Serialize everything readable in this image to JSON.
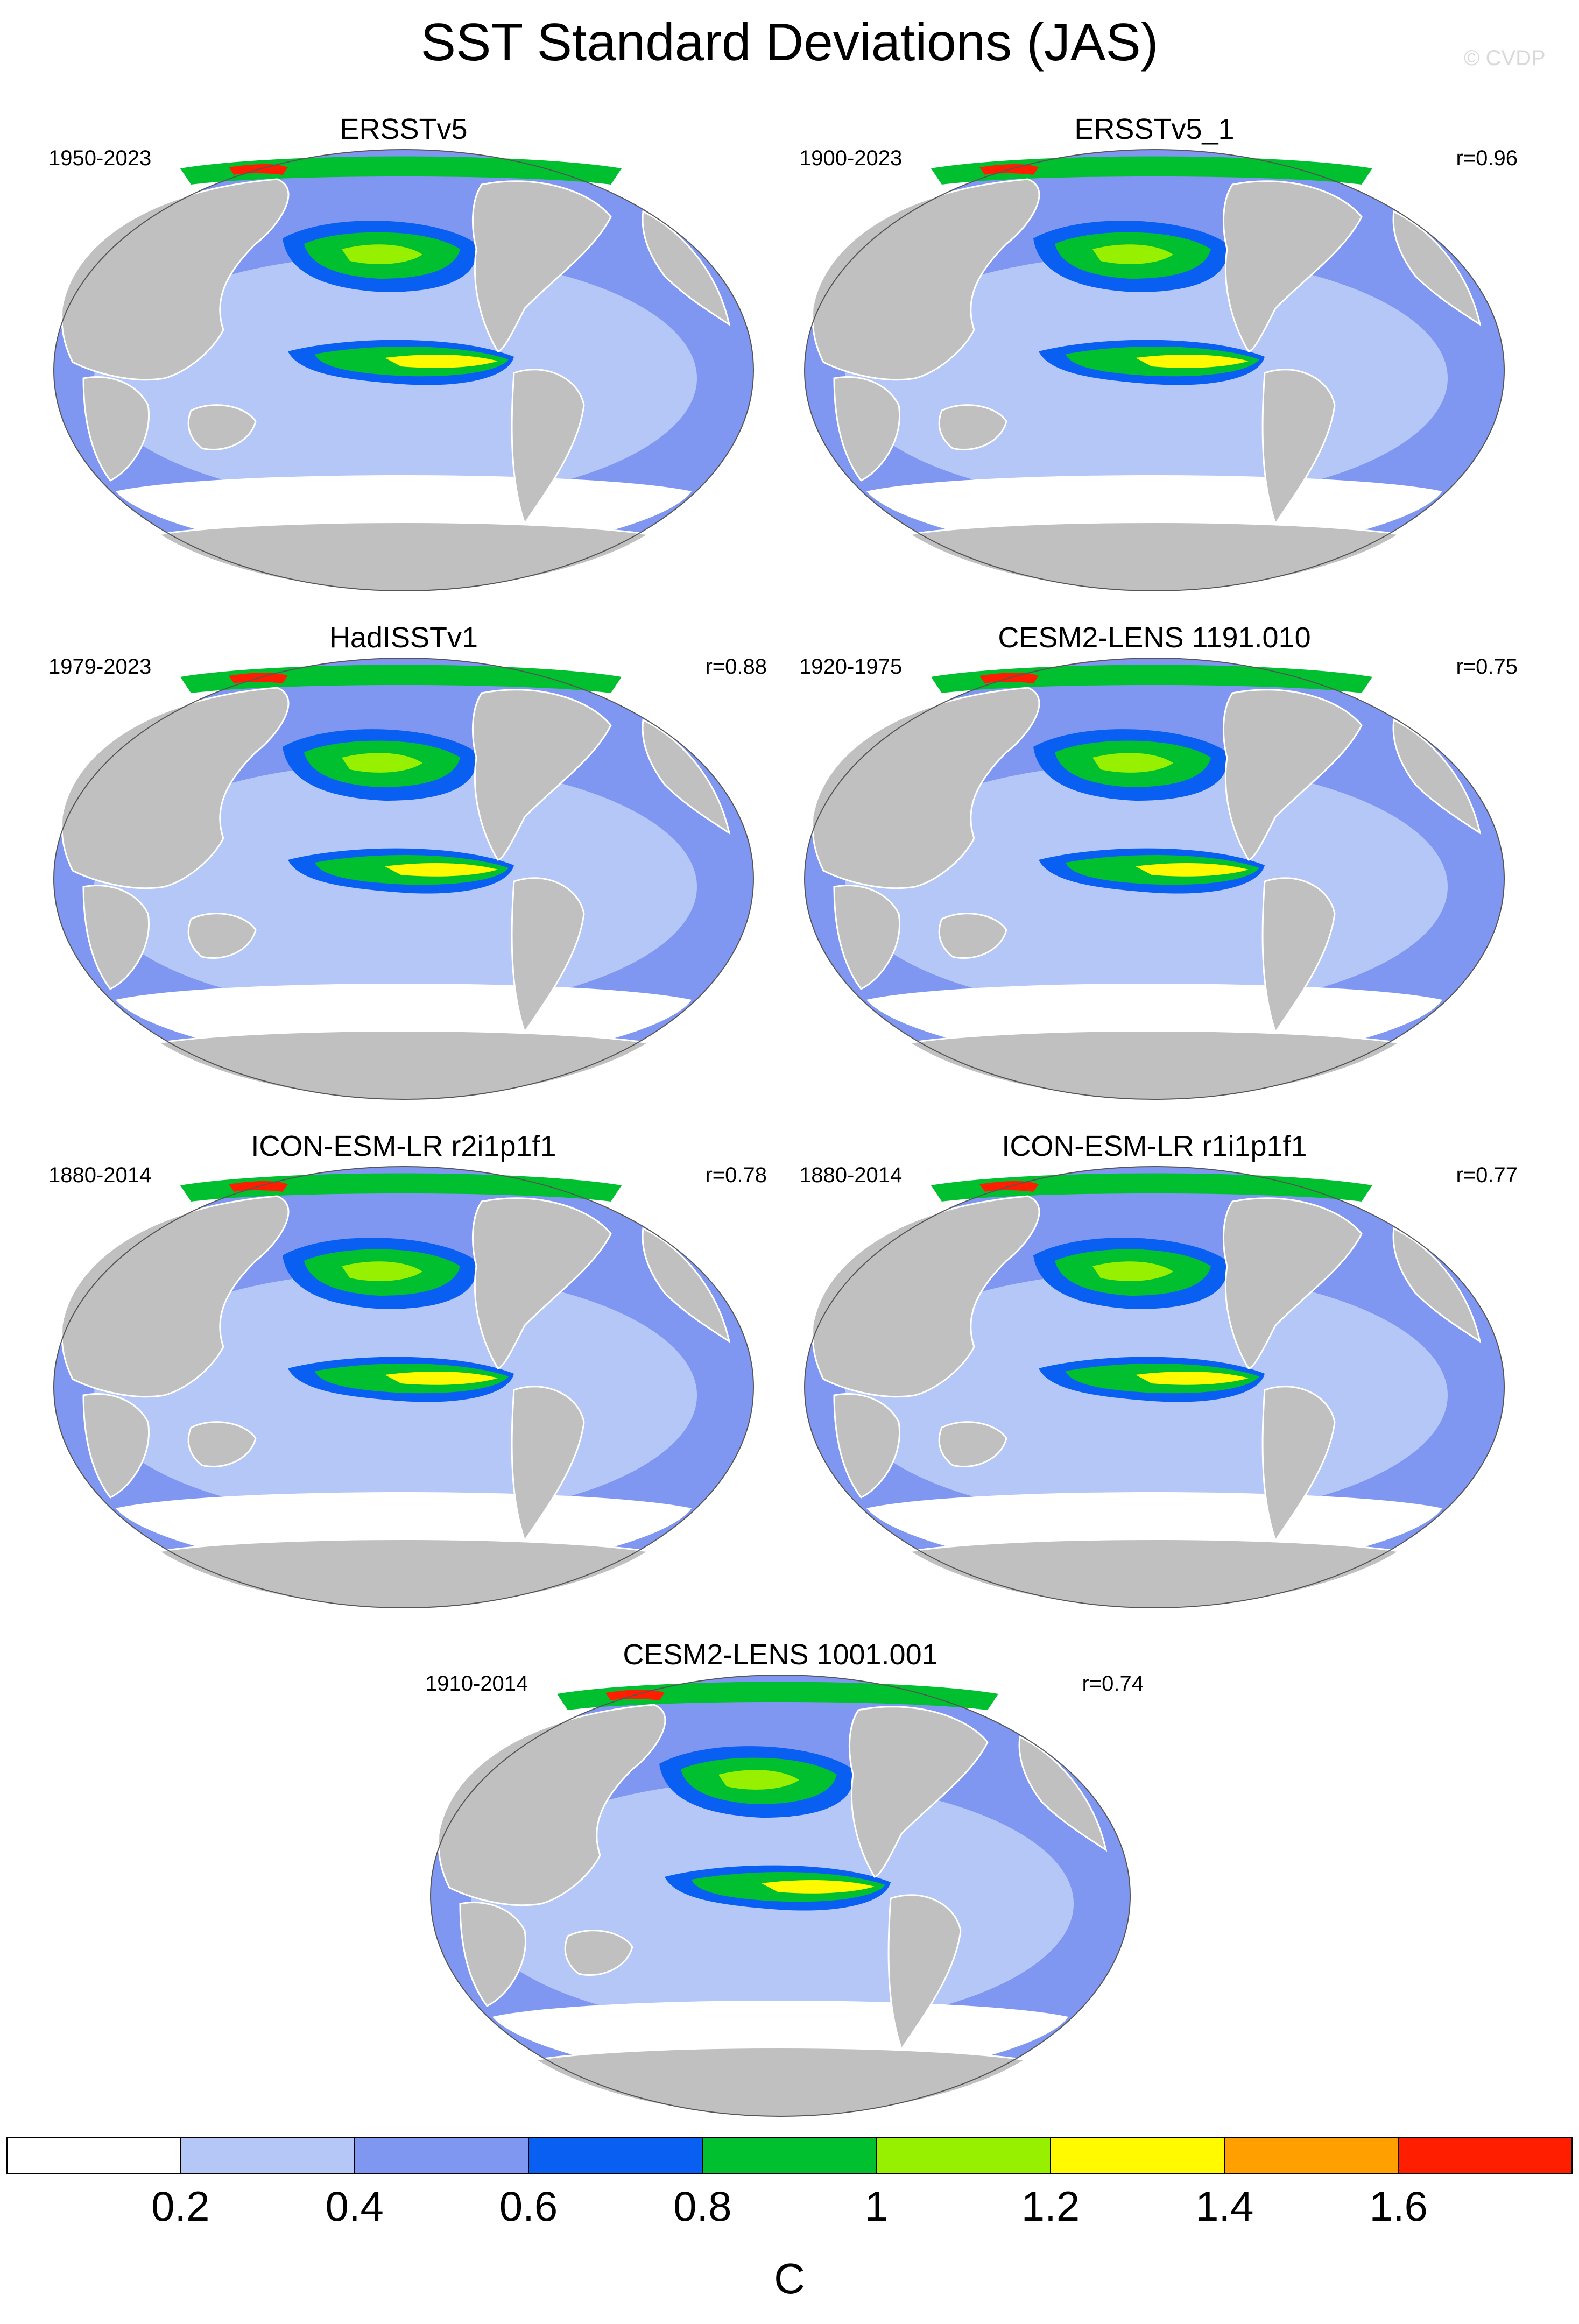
{
  "title": "SST Standard Deviations (JAS)",
  "watermark": "© CVDP",
  "panels": [
    {
      "name": "ERSSTv5",
      "period": "1950-2023",
      "corr": ""
    },
    {
      "name": "ERSSTv5_1",
      "period": "1900-2023",
      "corr": "r=0.96"
    },
    {
      "name": "HadISSTv1",
      "period": "1979-2023",
      "corr": "r=0.88"
    },
    {
      "name": "CESM2-LENS 1191.010",
      "period": "1920-1975",
      "corr": "r=0.75"
    },
    {
      "name": "ICON-ESM-LR r2i1p1f1",
      "period": "1880-2014",
      "corr": "r=0.78"
    },
    {
      "name": "ICON-ESM-LR r1i1p1f1",
      "period": "1880-2014",
      "corr": "r=0.77"
    },
    {
      "name": "CESM2-LENS 1001.001",
      "period": "1910-2014",
      "corr": "r=0.74"
    }
  ],
  "colorbar": {
    "label": "C",
    "ticks": [
      "0.2",
      "0.4",
      "0.6",
      "0.8",
      "1",
      "1.2",
      "1.4",
      "1.6"
    ],
    "colors": [
      "#ffffff",
      "#b4c7f6",
      "#8097f2",
      "#0a5ff3",
      "#00c030",
      "#96f000",
      "#fffa00",
      "#ffa000",
      "#ff1e00"
    ]
  },
  "map_colors": {
    "land": "#c0c0c0",
    "ocean_low": "#b4c7f6",
    "ocean_mid": "#8097f2",
    "ocean_high": "#0a5ff3",
    "anomaly_green": "#00c030",
    "anomaly_lime": "#96f000",
    "anomaly_yellow": "#fffa00",
    "anomaly_orange": "#ffa000",
    "anomaly_red": "#ff1e00"
  }
}
